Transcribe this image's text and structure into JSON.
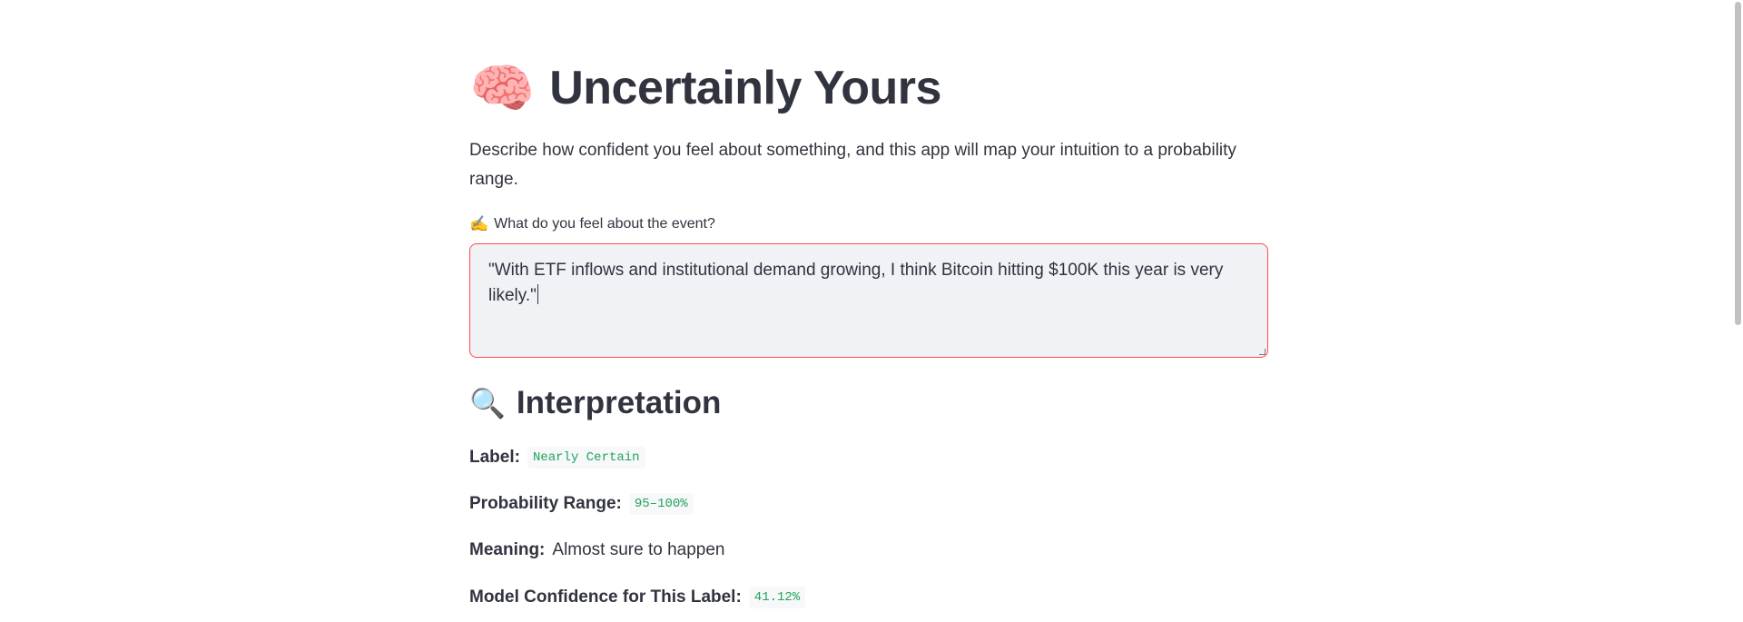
{
  "app": {
    "title_emoji": "🧠",
    "title": "Uncertainly Yours",
    "description": "Describe how confident you feel about something, and this app will map your intuition to a probability range."
  },
  "input": {
    "label_emoji": "✍️",
    "label": "What do you feel about the event?",
    "value": "\"With ETF inflows and institutional demand growing, I think Bitcoin hitting $100K this year is very likely.\""
  },
  "interpretation": {
    "header_emoji": "🔍",
    "header": "Interpretation",
    "label_title": "Label:",
    "label_value": "Nearly Certain",
    "range_title": "Probability Range:",
    "range_value": "95–100%",
    "meaning_title": "Meaning:",
    "meaning_value": "Almost sure to happen",
    "confidence_title": "Model Confidence for This Label:",
    "confidence_value": "41.12%"
  },
  "colors": {
    "accent": "#ff4b4b",
    "code_text": "#21a35b",
    "text": "#31333f",
    "input_bg": "#f0f2f6"
  }
}
